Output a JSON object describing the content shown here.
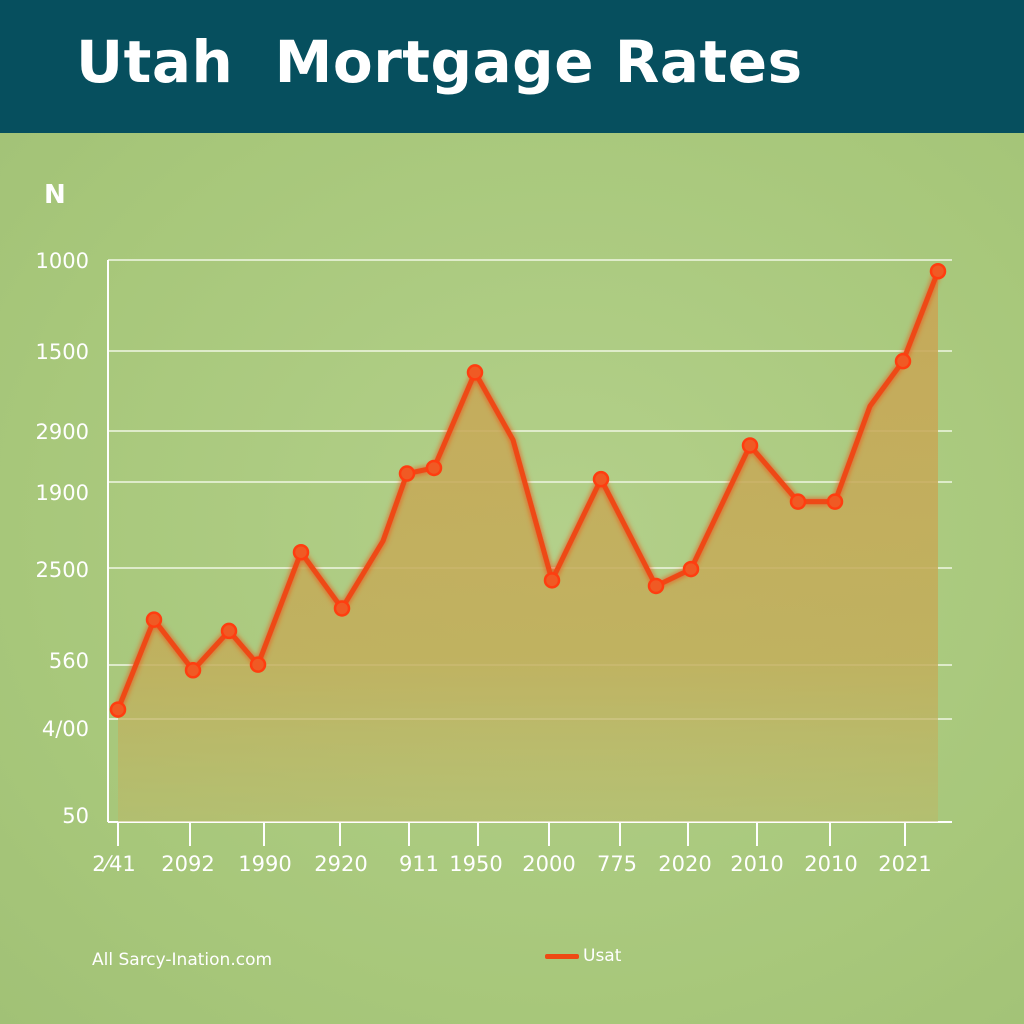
{
  "header": {
    "title": "Utah  Mortgage Rates"
  },
  "chart_data": {
    "type": "area",
    "title": "Utah  Mortgage Rates",
    "ylabel": "N",
    "y_tick_labels": [
      "1000",
      "1500",
      "2900",
      "1900",
      "2500",
      "560",
      "4/00",
      "50"
    ],
    "x_tick_labels": [
      "2⁄41",
      "2092",
      "1990",
      "2920",
      "911",
      "1950",
      "2000",
      "775",
      "2020",
      "2010",
      "2010",
      "2021"
    ],
    "grid": true,
    "legend": "bottom-center",
    "series": [
      {
        "name": "Usat",
        "color": "#ee4a14",
        "values": [
          0.2,
          0.36,
          0.27,
          0.34,
          0.28,
          0.48,
          0.38,
          0.5,
          0.62,
          0.63,
          0.8,
          0.68,
          0.43,
          0.61,
          0.42,
          0.45,
          0.67,
          0.57,
          0.57,
          0.74,
          0.82,
          0.98
        ]
      }
    ]
  },
  "footer": {
    "source": "All Sarcy-Ination.com"
  },
  "legend": {
    "label": "Usat"
  },
  "colors": {
    "header": "#064f5e",
    "background": "#a9c97c",
    "line": "#ee4a14",
    "area": "#c4a956"
  }
}
